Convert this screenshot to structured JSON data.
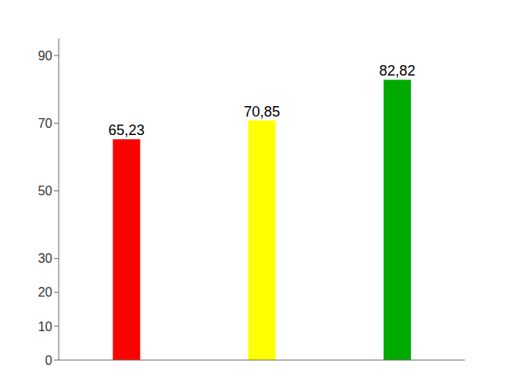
{
  "chart_data": {
    "type": "bar",
    "categories": [
      null,
      null,
      null
    ],
    "values": [
      65.23,
      70.85,
      82.82
    ],
    "value_labels": [
      "65,23",
      "70,85",
      "82,82"
    ],
    "data_labels": true,
    "colors": [
      "#ff0000",
      "#ffff00",
      "#00aa00"
    ],
    "ylim": [
      0,
      95
    ],
    "yticks": [
      0,
      10,
      20,
      30,
      50,
      70,
      90
    ],
    "grid": false,
    "tick_labels": "y"
  }
}
